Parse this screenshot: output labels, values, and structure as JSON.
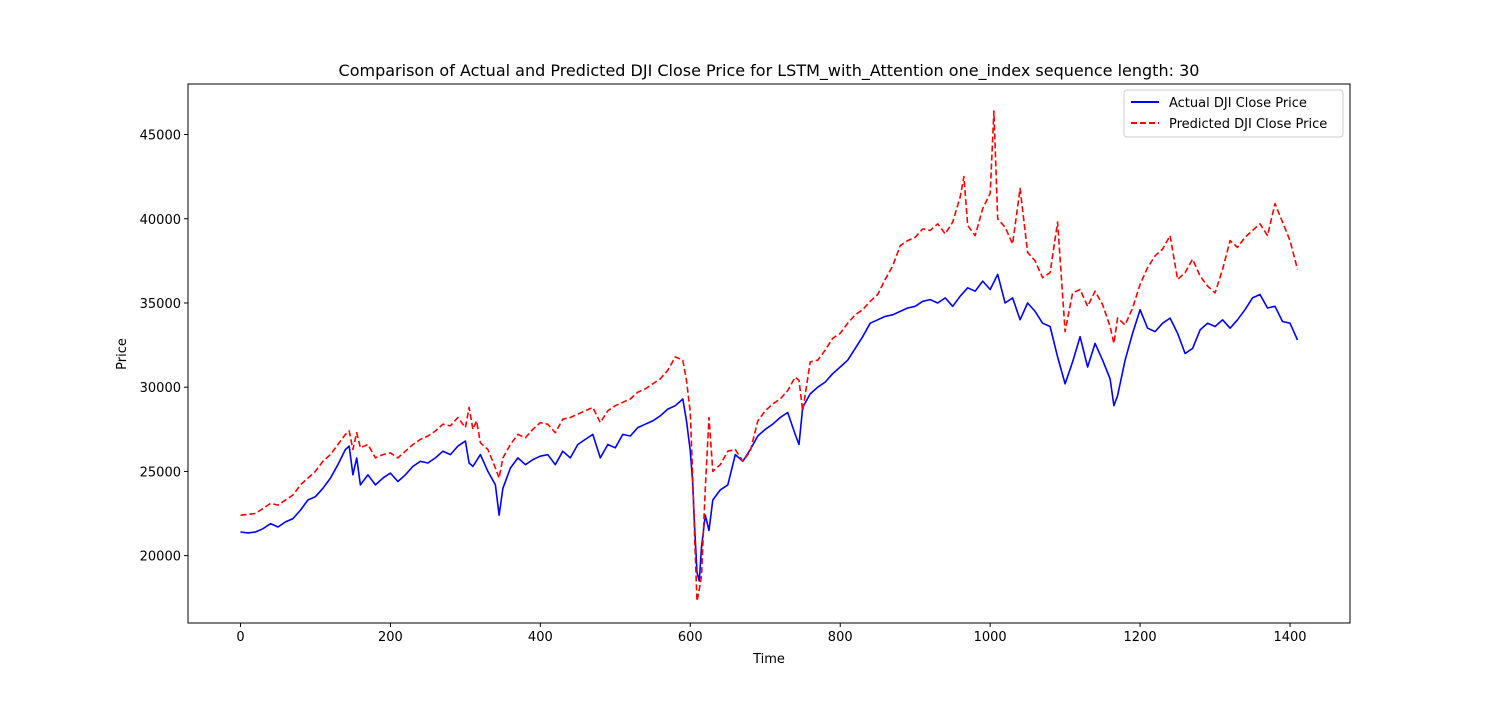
{
  "chart_data": {
    "type": "line",
    "title": "Comparison of Actual and Predicted DJI Close Price for LSTM_with_Attention one_index sequence length: 30",
    "xlabel": "Time",
    "ylabel": "Price",
    "xlim": [
      -70,
      1480
    ],
    "ylim": [
      16000,
      48000
    ],
    "xticks": [
      0,
      200,
      400,
      600,
      800,
      1000,
      1200,
      1400
    ],
    "yticks": [
      20000,
      25000,
      30000,
      35000,
      40000,
      45000
    ],
    "legend_position": "top-right",
    "grid": false,
    "series": [
      {
        "name": "Actual DJI Close Price",
        "color": "#0000ff",
        "linestyle": "solid",
        "x": [
          0,
          10,
          20,
          30,
          40,
          50,
          60,
          70,
          80,
          90,
          100,
          110,
          120,
          130,
          140,
          145,
          150,
          155,
          160,
          170,
          180,
          190,
          200,
          210,
          220,
          230,
          240,
          250,
          260,
          270,
          280,
          290,
          300,
          305,
          310,
          320,
          330,
          340,
          345,
          350,
          360,
          370,
          380,
          390,
          400,
          410,
          420,
          430,
          440,
          450,
          460,
          470,
          480,
          490,
          500,
          510,
          520,
          530,
          540,
          550,
          560,
          570,
          580,
          590,
          595,
          600,
          603,
          606,
          609,
          612,
          615,
          620,
          625,
          630,
          640,
          650,
          660,
          670,
          680,
          690,
          700,
          710,
          720,
          730,
          740,
          745,
          750,
          760,
          770,
          780,
          790,
          800,
          810,
          820,
          830,
          840,
          850,
          860,
          870,
          880,
          890,
          900,
          910,
          920,
          930,
          940,
          950,
          960,
          970,
          980,
          990,
          1000,
          1010,
          1020,
          1030,
          1040,
          1050,
          1060,
          1070,
          1080,
          1090,
          1100,
          1110,
          1120,
          1130,
          1140,
          1150,
          1160,
          1165,
          1170,
          1180,
          1190,
          1200,
          1210,
          1220,
          1230,
          1240,
          1250,
          1260,
          1270,
          1280,
          1290,
          1300,
          1310,
          1320,
          1330,
          1340,
          1350,
          1360,
          1370,
          1380,
          1390,
          1400,
          1410
        ],
        "y": [
          21400,
          21350,
          21400,
          21600,
          21900,
          21700,
          22000,
          22200,
          22700,
          23300,
          23500,
          24000,
          24600,
          25400,
          26300,
          26500,
          24800,
          25800,
          24200,
          24800,
          24200,
          24600,
          24900,
          24400,
          24800,
          25300,
          25600,
          25500,
          25800,
          26200,
          26000,
          26500,
          26800,
          25500,
          25300,
          26000,
          25000,
          24200,
          22400,
          24000,
          25200,
          25800,
          25400,
          25700,
          25900,
          26000,
          25400,
          26200,
          25800,
          26600,
          26900,
          27200,
          25800,
          26600,
          26400,
          27200,
          27100,
          27600,
          27800,
          28000,
          28300,
          28700,
          28900,
          29300,
          28000,
          26200,
          24500,
          21500,
          19000,
          18500,
          20500,
          22400,
          21500,
          23300,
          23900,
          24200,
          26000,
          25600,
          26300,
          27100,
          27500,
          27800,
          28200,
          28500,
          27200,
          26600,
          28800,
          29600,
          30000,
          30300,
          30800,
          31200,
          31600,
          32300,
          33000,
          33800,
          34000,
          34200,
          34300,
          34500,
          34700,
          34800,
          35100,
          35200,
          35000,
          35300,
          34800,
          35400,
          35900,
          35700,
          36300,
          35800,
          36700,
          35000,
          35300,
          34000,
          35000,
          34500,
          33800,
          33600,
          31800,
          30200,
          31500,
          33000,
          31200,
          32600,
          31600,
          30500,
          28900,
          29500,
          31600,
          33200,
          34600,
          33500,
          33300,
          33800,
          34100,
          33200,
          32000,
          32300,
          33400,
          33800,
          33600,
          34000,
          33500,
          34000,
          34600,
          35300,
          35500,
          34700,
          34800,
          33900,
          33800,
          32800
        ]
      },
      {
        "name": "Predicted DJI Close Price",
        "color": "#ff0000",
        "linestyle": "dashed",
        "x": [
          0,
          10,
          20,
          30,
          40,
          50,
          60,
          70,
          80,
          90,
          100,
          110,
          120,
          130,
          140,
          145,
          150,
          155,
          160,
          170,
          180,
          190,
          200,
          210,
          220,
          230,
          240,
          250,
          260,
          270,
          280,
          290,
          300,
          305,
          310,
          315,
          320,
          330,
          340,
          345,
          350,
          360,
          370,
          380,
          390,
          400,
          410,
          420,
          430,
          440,
          450,
          460,
          470,
          480,
          490,
          500,
          510,
          520,
          530,
          540,
          550,
          560,
          570,
          580,
          590,
          595,
          600,
          603,
          606,
          609,
          612,
          615,
          620,
          625,
          630,
          640,
          650,
          660,
          670,
          680,
          690,
          700,
          710,
          720,
          730,
          740,
          745,
          750,
          760,
          770,
          780,
          790,
          800,
          810,
          820,
          830,
          840,
          850,
          860,
          870,
          880,
          890,
          900,
          910,
          920,
          930,
          940,
          950,
          960,
          965,
          970,
          980,
          990,
          1000,
          1005,
          1010,
          1020,
          1030,
          1040,
          1050,
          1060,
          1070,
          1080,
          1090,
          1100,
          1110,
          1120,
          1130,
          1140,
          1150,
          1160,
          1165,
          1170,
          1180,
          1190,
          1200,
          1210,
          1220,
          1230,
          1240,
          1250,
          1260,
          1270,
          1280,
          1290,
          1300,
          1310,
          1320,
          1330,
          1340,
          1350,
          1360,
          1370,
          1380,
          1390,
          1400,
          1410
        ],
        "y": [
          22400,
          22450,
          22500,
          22800,
          23100,
          23000,
          23300,
          23600,
          24200,
          24600,
          25000,
          25600,
          26000,
          26600,
          27200,
          27400,
          26300,
          27300,
          26400,
          26600,
          25800,
          26000,
          26100,
          25800,
          26200,
          26600,
          26900,
          27100,
          27400,
          27800,
          27700,
          28200,
          27600,
          28800,
          27500,
          28000,
          26700,
          26300,
          25200,
          24600,
          25800,
          26600,
          27200,
          27000,
          27500,
          27900,
          27800,
          27300,
          28100,
          28200,
          28400,
          28600,
          28800,
          27900,
          28600,
          28900,
          29100,
          29300,
          29700,
          29900,
          30200,
          30500,
          31000,
          31800,
          31600,
          30400,
          28500,
          25000,
          20800,
          17300,
          18000,
          18800,
          24000,
          28200,
          25000,
          25400,
          26200,
          26300,
          25600,
          26200,
          28000,
          28600,
          29000,
          29300,
          29800,
          30600,
          30400,
          28600,
          31500,
          31600,
          32200,
          32900,
          33200,
          33800,
          34300,
          34600,
          35100,
          35500,
          36400,
          37200,
          38400,
          38700,
          38900,
          39400,
          39300,
          39700,
          39100,
          39800,
          41300,
          42500,
          39600,
          39000,
          40600,
          41500,
          46400,
          40000,
          39500,
          38500,
          41800,
          38000,
          37500,
          36500,
          36800,
          39800,
          33300,
          35600,
          35800,
          34800,
          35700,
          34900,
          33600,
          32600,
          34100,
          33700,
          34700,
          36100,
          37100,
          37800,
          38200,
          39000,
          36400,
          36800,
          37600,
          36600,
          36000,
          35600,
          37000,
          38700,
          38300,
          38900,
          39300,
          39700,
          39000,
          40900,
          39800,
          38700,
          37000
        ]
      }
    ]
  }
}
